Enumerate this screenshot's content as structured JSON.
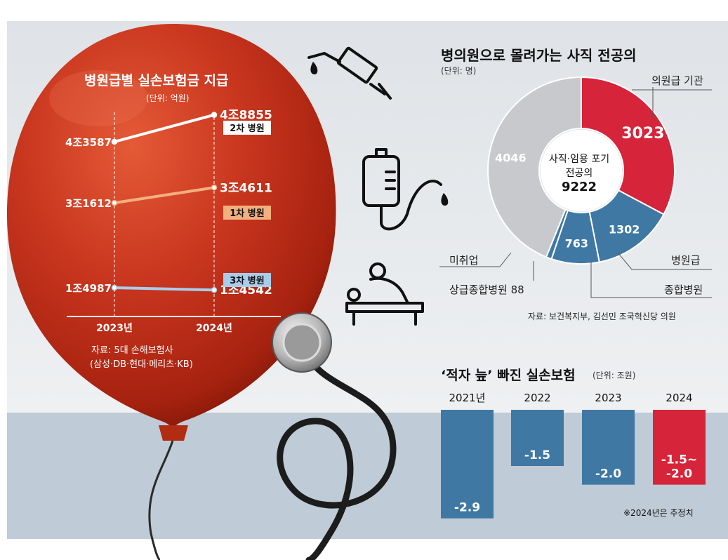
{
  "colors": {
    "balloon": "#d33a20",
    "line_2cha": "#ffffff",
    "line_1cha": "#f2b07e",
    "line_3cha": "#a8cdeb",
    "donut_red": "#d6243a",
    "donut_blue": "#3f78a3",
    "donut_gray": "#c8c9cc",
    "bar_blue": "#3f78a3",
    "bar_red": "#d6243a"
  },
  "icons": [
    "syringe-icon",
    "iv-bag-icon",
    "massage-icon",
    "stethoscope-icon"
  ],
  "chart_data": [
    {
      "type": "line",
      "title": "병원급별 실손보험금 지급",
      "unit": "(단위: 억원)",
      "x": [
        "2023년",
        "2024년"
      ],
      "series": [
        {
          "name": "2차 병원",
          "values": [
            43587,
            48855
          ],
          "labels": [
            "4조3587",
            "4조8855"
          ]
        },
        {
          "name": "1차 병원",
          "values": [
            31612,
            34611
          ],
          "labels": [
            "3조1612",
            "3조4611"
          ]
        },
        {
          "name": "3차 병원",
          "values": [
            14987,
            14542
          ],
          "labels": [
            "1조4987",
            "1조4542"
          ]
        }
      ],
      "source_lines": [
        "자료: 5대 손해보험사",
        "(삼성·DB·현대·메리츠·KB)"
      ]
    },
    {
      "type": "pie",
      "title": "병의원으로 몰려가는 사직 전공의",
      "unit": "(단위: 명)",
      "center_lines": [
        "사직·임용 포기",
        "전공의"
      ],
      "total": 9222,
      "slices": [
        {
          "label": "의원급 기관",
          "value": 3023
        },
        {
          "label": "병원급",
          "value": 1302
        },
        {
          "label": "종합병원",
          "value": 763
        },
        {
          "label": "상급종합병원",
          "value": 88,
          "display": "상급종합병원 88"
        },
        {
          "label": "미취업",
          "value": 4046
        }
      ],
      "source": "자료: 보건복지부, 김선민 조국혁신당 의원"
    },
    {
      "type": "bar",
      "title": "‘적자 늪’ 빠진 실손보험",
      "unit": "(단위: 조원)",
      "categories": [
        "2021년",
        "2022",
        "2023",
        "2024"
      ],
      "values": [
        -2.9,
        -1.5,
        -2.0,
        -2.0
      ],
      "value_labels": [
        "-2.9",
        "-1.5",
        "-2.0",
        "-1.5~\n-2.0"
      ],
      "ylim": [
        -3.0,
        0
      ],
      "note": "※2024년은 추정치"
    }
  ]
}
